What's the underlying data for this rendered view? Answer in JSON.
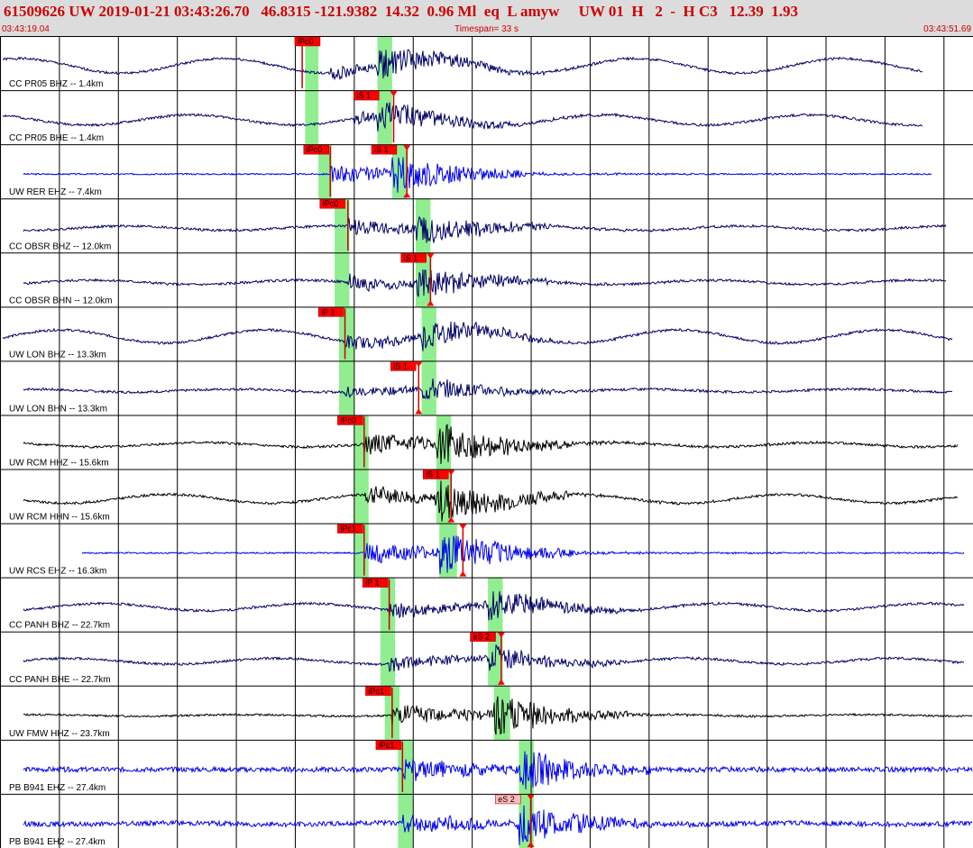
{
  "header": {
    "title": "61509626 UW 2019-01-21 03:43:26.70   46.8315 -121.9382  14.32  0.96 Ml  eq  L amyw     UW 01  H   2  -  H C3   12.39  1.93",
    "start_time": "03:43:19.04",
    "timespan": "Timespan=  33 s",
    "end_time": "03:43:51.69"
  },
  "chart_data": {
    "type": "line",
    "title": "",
    "xlabel": "",
    "ylabel": "",
    "xlim": [
      0,
      33
    ],
    "colors": {
      "pick_box": "#ff0000",
      "pick_box_alt": "#ffbbbb",
      "window": "#90ee90",
      "trace_blue": "#0000ee",
      "trace_navy": "#000066",
      "trace_black": "#000000",
      "grid": "#000000"
    },
    "traces": [
      {
        "label": "CC PR05 BHZ -- 1.4km",
        "color": "#000066",
        "seed": 1,
        "onset": 11.2,
        "amp": 0.55,
        "noise": 0.05,
        "long": 0.5,
        "end": 31.3,
        "picks": [
          {
            "label": "iPc0",
            "t": 10.25,
            "box_t": 10.0,
            "bg": "#ff0000",
            "win": [
              10.35,
              10.8
            ],
            "arrow": "none"
          }
        ],
        "windows": [
          [
            10.35,
            10.8
          ],
          [
            12.8,
            13.3
          ]
        ]
      },
      {
        "label": "CC PR05 BHE -- 1.4km",
        "color": "#000066",
        "seed": 2,
        "onset": 12.0,
        "amp": 0.5,
        "noise": 0.05,
        "long": 0.35,
        "end": 31.3,
        "picks": [
          {
            "label": "iS 1",
            "t": 13.35,
            "box_t": 12.0,
            "bg": "#ff0000",
            "arrow": "down"
          }
        ],
        "windows": [
          [
            10.35,
            10.8
          ],
          [
            12.8,
            13.3
          ]
        ]
      },
      {
        "label": "UW RER EHZ -- 7.4km",
        "color": "#0000ee",
        "seed": 3,
        "onset": 11.2,
        "amp": 0.7,
        "noise": 0.03,
        "long": 0.0,
        "end": 31.6,
        "picks": [
          {
            "label": "iPc0",
            "t": 11.2,
            "box_t": 10.3,
            "bg": "#ff0000",
            "arrow": "none"
          },
          {
            "label": "iS 1",
            "t": 13.8,
            "box_t": 12.6,
            "bg": "#ff0000",
            "arrow": "both"
          }
        ],
        "windows": [
          [
            10.8,
            11.25
          ],
          [
            13.3,
            13.8
          ]
        ]
      },
      {
        "label": "CC OBSR BHZ -- 12.0km",
        "color": "#000066",
        "seed": 4,
        "onset": 11.8,
        "amp": 0.6,
        "noise": 0.05,
        "long": 0.15,
        "end": 32.1,
        "picks": [
          {
            "label": "iPc0",
            "t": 11.8,
            "box_t": 10.85,
            "bg": "#ff0000",
            "arrow": "none"
          }
        ],
        "windows": [
          [
            11.35,
            11.85
          ],
          [
            14.1,
            14.6
          ]
        ]
      },
      {
        "label": "CC OBSR BHN -- 12.0km",
        "color": "#000066",
        "seed": 5,
        "onset": 11.8,
        "amp": 0.6,
        "noise": 0.05,
        "long": 0.15,
        "end": 32.1,
        "picks": [
          {
            "label": "iS 1",
            "t": 14.6,
            "box_t": 13.6,
            "bg": "#ff0000",
            "arrow": "both"
          }
        ],
        "windows": [
          [
            11.35,
            11.85
          ],
          [
            14.1,
            14.6
          ]
        ]
      },
      {
        "label": "UW LON BHZ -- 13.3km",
        "color": "#000066",
        "seed": 6,
        "onset": 11.7,
        "amp": 0.55,
        "noise": 0.05,
        "long": 0.45,
        "end": 32.3,
        "picks": [
          {
            "label": "iP 1",
            "t": 11.7,
            "box_t": 10.8,
            "bg": "#ff0000",
            "arrow": "none"
          }
        ],
        "windows": [
          [
            11.5,
            12.0
          ],
          [
            14.3,
            14.8
          ]
        ]
      },
      {
        "label": "UW LON BHN -- 13.3km",
        "color": "#000066",
        "seed": 7,
        "onset": 11.7,
        "amp": 0.45,
        "noise": 0.05,
        "long": 0.1,
        "end": 32.3,
        "picks": [
          {
            "label": "iS 1",
            "t": 14.2,
            "box_t": 13.25,
            "bg": "#ff0000",
            "arrow": "both"
          }
        ],
        "windows": [
          [
            11.5,
            12.0
          ],
          [
            14.3,
            14.8
          ]
        ]
      },
      {
        "label": "UW RCM HHZ -- 15.6km",
        "color": "#000000",
        "seed": 8,
        "onset": 12.35,
        "amp": 0.8,
        "noise": 0.05,
        "long": 0.15,
        "end": 32.5,
        "picks": [
          {
            "label": "iPc0",
            "t": 12.35,
            "box_t": 11.45,
            "bg": "#ff0000",
            "arrow": "none"
          }
        ],
        "windows": [
          [
            12.0,
            12.5
          ],
          [
            14.8,
            15.3
          ]
        ]
      },
      {
        "label": "UW RCM HHN -- 15.6km",
        "color": "#000000",
        "seed": 9,
        "onset": 12.35,
        "amp": 0.8,
        "noise": 0.05,
        "long": 0.3,
        "end": 32.5,
        "picks": [
          {
            "label": "iS 1",
            "t": 15.3,
            "box_t": 14.35,
            "bg": "#ff0000",
            "arrow": "both"
          }
        ],
        "windows": [
          [
            12.0,
            12.5
          ],
          [
            14.8,
            15.3
          ]
        ]
      },
      {
        "label": "UW RCS EHZ -- 16.3km",
        "color": "#0000ee",
        "seed": 10,
        "onset": 12.35,
        "amp": 0.85,
        "noise": 0.03,
        "long": 0.0,
        "end": 32.7,
        "picks": [
          {
            "label": "iPc1",
            "t": 12.35,
            "box_t": 11.45,
            "bg": "#ff0000",
            "arrow": "none"
          },
          {
            "label": "",
            "t": 15.7,
            "box_t": 15.7,
            "bg": "none",
            "arrow": "both"
          }
        ],
        "windows": [
          [
            12.0,
            12.5
          ],
          [
            14.9,
            15.5
          ]
        ]
      },
      {
        "label": "CC PANH BHZ -- 22.7km",
        "color": "#000066",
        "seed": 11,
        "onset": 13.2,
        "amp": 0.6,
        "noise": 0.05,
        "long": 0.25,
        "end": 32.7,
        "picks": [
          {
            "label": "iP 1",
            "t": 13.2,
            "box_t": 12.3,
            "bg": "#ff0000",
            "arrow": "none"
          }
        ],
        "windows": [
          [
            12.9,
            13.4
          ],
          [
            16.55,
            17.05
          ]
        ]
      },
      {
        "label": "CC PANH BHE -- 22.7km",
        "color": "#000066",
        "seed": 12,
        "onset": 13.2,
        "amp": 0.55,
        "noise": 0.05,
        "long": 0.2,
        "end": 32.7,
        "picks": [
          {
            "label": "eS 2",
            "t": 17.0,
            "box_t": 15.95,
            "bg": "#ff0000",
            "arrow": "both"
          }
        ],
        "windows": [
          [
            12.9,
            13.4
          ],
          [
            16.55,
            17.05
          ]
        ]
      },
      {
        "label": "UW FMW HHZ -- 23.7km",
        "color": "#000000",
        "seed": 13,
        "onset": 13.3,
        "amp": 0.85,
        "noise": 0.04,
        "long": 0.05,
        "end": 33.0,
        "picks": [
          {
            "label": "iPc1",
            "t": 13.3,
            "box_t": 12.4,
            "bg": "#ff0000",
            "arrow": "none"
          }
        ],
        "windows": [
          [
            13.05,
            13.55
          ],
          [
            16.75,
            17.3
          ]
        ]
      },
      {
        "label": "PB B941 EHZ -- 27.4km",
        "color": "#0000ee",
        "seed": 14,
        "onset": 13.65,
        "amp": 0.8,
        "noise": 0.1,
        "long": 0.0,
        "end": 33.0,
        "picks": [
          {
            "label": "iPc1",
            "t": 13.65,
            "box_t": 12.75,
            "bg": "#ff0000",
            "arrow": "none"
          }
        ],
        "windows": [
          [
            13.5,
            14.0
          ],
          [
            17.6,
            18.1
          ]
        ]
      },
      {
        "label": "PB B941 EH2 -- 27.4km",
        "color": "#0000ee",
        "seed": 15,
        "onset": 13.65,
        "amp": 0.8,
        "noise": 0.1,
        "long": 0.05,
        "end": 33.0,
        "picks": [
          {
            "label": "eS 2",
            "t": 18.0,
            "box_t": 16.8,
            "bg": "#ffbbbb",
            "arrow": "both"
          }
        ],
        "windows": [
          [
            13.5,
            14.0
          ],
          [
            17.6,
            18.1
          ]
        ]
      }
    ],
    "grid_seconds": [
      0,
      2,
      4,
      6,
      8,
      10,
      12,
      14,
      16,
      18,
      20,
      22,
      24,
      26,
      28,
      30,
      32
    ]
  }
}
